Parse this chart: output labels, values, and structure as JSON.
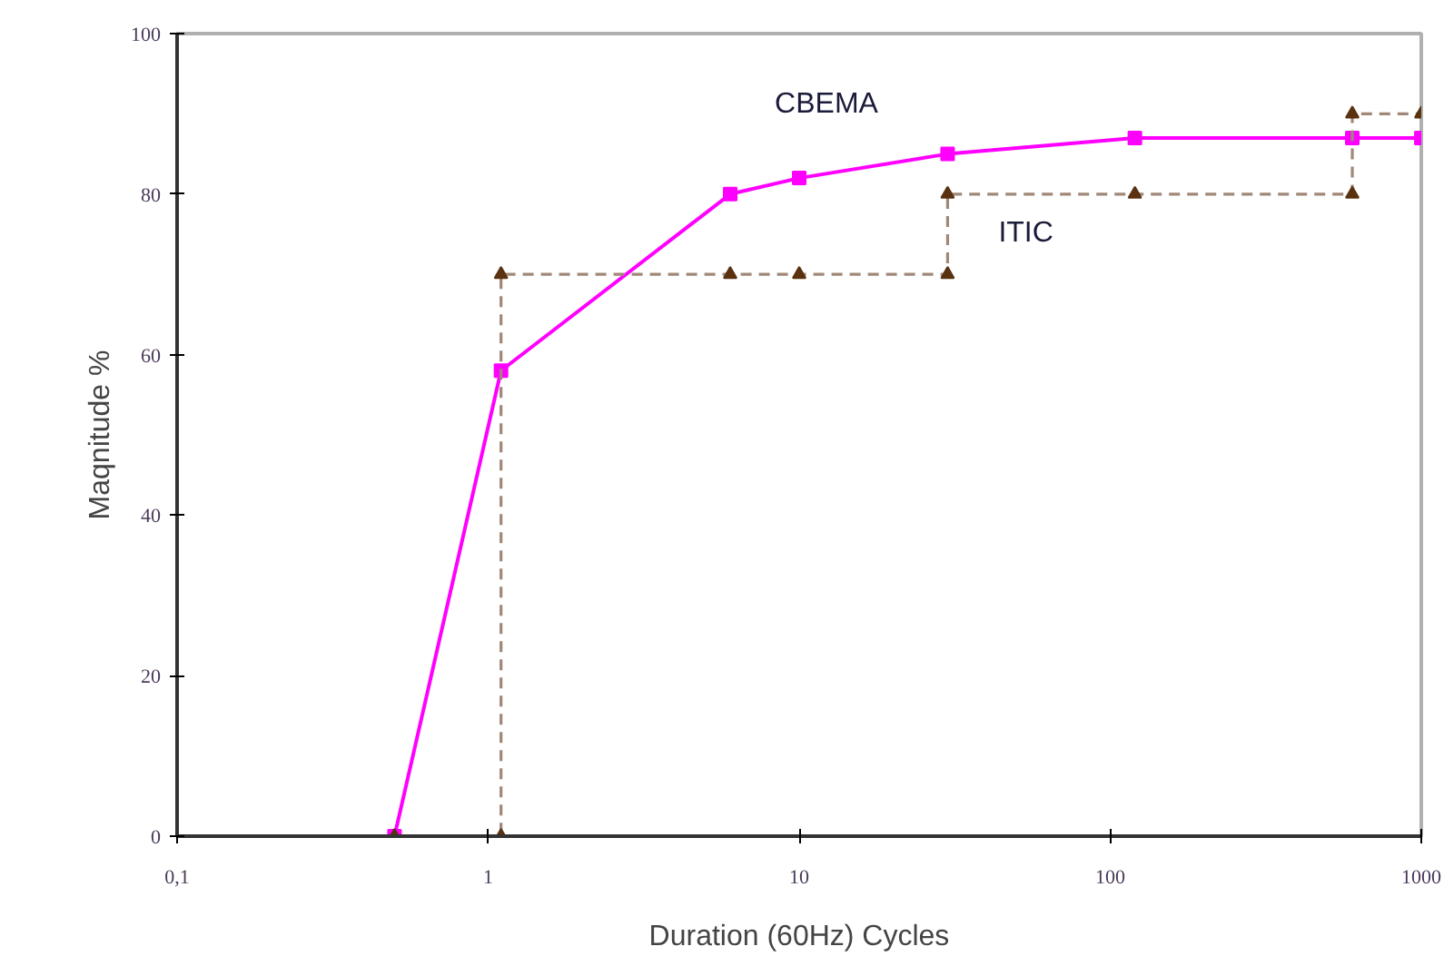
{
  "chart_data": {
    "type": "line",
    "xlabel": "Duration (60Hz) Cycles",
    "ylabel": "Maqnitude %",
    "log": "x",
    "grid": false,
    "xlim": [
      0.1,
      1000
    ],
    "xticks": [
      {
        "value": 0.1,
        "label": "0,1"
      },
      1,
      10,
      100,
      1000
    ],
    "ylim": [
      0,
      100
    ],
    "yticks": [
      0,
      20,
      40,
      60,
      80,
      100
    ],
    "series": [
      {
        "name": "CBEMA",
        "color": "#ff00ff",
        "marker": "square",
        "line_style": "solid",
        "x": [
          0.5,
          1.1,
          6,
          10,
          30,
          120,
          600,
          1000
        ],
        "values": [
          0,
          58,
          80,
          82,
          85,
          87,
          87,
          87
        ]
      },
      {
        "name": "ITIC",
        "color": "#5a3210",
        "marker": "triangle",
        "line_style": "dashed",
        "x": [
          0.5,
          1.1,
          1.1,
          6,
          10,
          30,
          30,
          120,
          600,
          600,
          1000
        ],
        "values": [
          0,
          0,
          70,
          70,
          70,
          70,
          80,
          80,
          80,
          90,
          90
        ]
      }
    ]
  }
}
